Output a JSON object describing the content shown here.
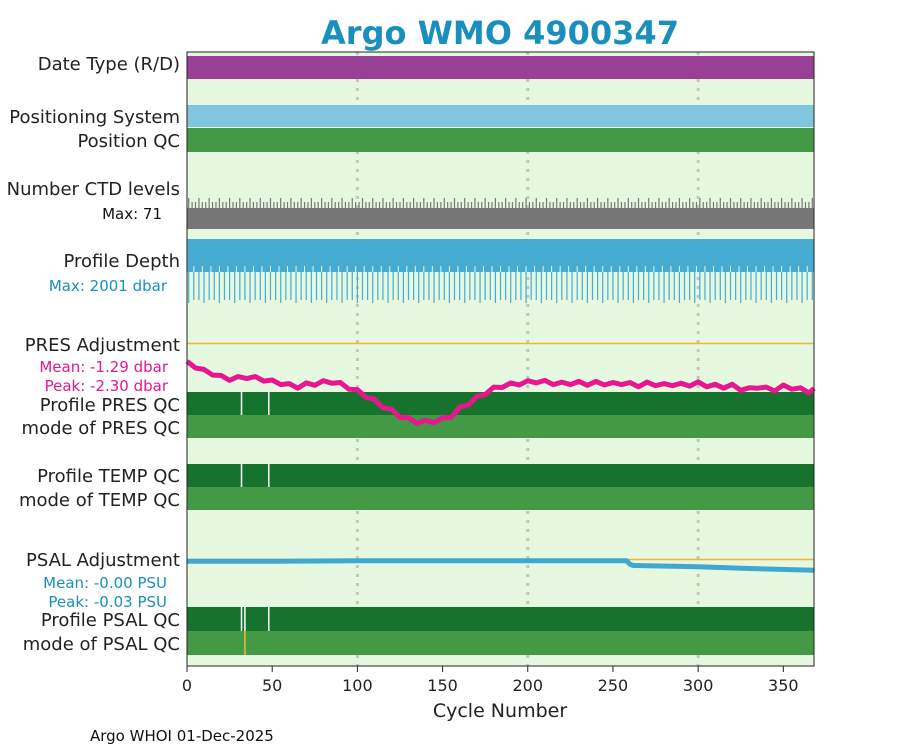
{
  "chart_data": {
    "type": "timeline",
    "title": "Argo WMO 4900347",
    "xlabel": "Cycle Number",
    "xlim": [
      0,
      368
    ],
    "xticks": [
      0,
      50,
      100,
      150,
      200,
      250,
      300,
      350
    ],
    "grid_x": [
      100,
      200,
      300
    ],
    "footer": "Argo WHOI 01-Dec-2025",
    "colors": {
      "title": "#1a8fbf",
      "panel_bg": "#e6f8e0",
      "date_type_D": "#9a3f96",
      "positioning": "#80c6df",
      "qc_good": "#449a44",
      "qc_dark": "#16732e",
      "ctd": "#777777",
      "depth": "#46acd2",
      "pres": "#e8168f",
      "psal": "#3ea8d2",
      "ref_line": "#f0b537",
      "qc_flag_white": "#ffffff",
      "qc_flag_orange": "#f0b537"
    },
    "rows": {
      "date_type": {
        "label": "Date Type (R/D)",
        "value": "D"
      },
      "positioning": {
        "label": "Positioning System"
      },
      "position_qc": {
        "label": "Position QC",
        "value": 1
      },
      "ctd_levels": {
        "label": "Number CTD levels",
        "max_text": "Max: 71",
        "max": 71
      },
      "profile_depth": {
        "label": "Profile Depth",
        "max_text": "Max: 2001 dbar",
        "max": 2001
      },
      "pres_adj": {
        "label": "PRES Adjustment",
        "mean_text": "Mean: -1.29 dbar",
        "peak_text": "Peak: -2.30 dbar",
        "range": [
          -2.45,
          0
        ],
        "points": [
          [
            0,
            -0.55
          ],
          [
            5,
            -0.65
          ],
          [
            10,
            -0.78
          ],
          [
            15,
            -0.85
          ],
          [
            20,
            -0.95
          ],
          [
            25,
            -1.0
          ],
          [
            30,
            -0.98
          ],
          [
            35,
            -0.95
          ],
          [
            40,
            -0.98
          ],
          [
            45,
            -1.02
          ],
          [
            50,
            -1.08
          ],
          [
            55,
            -1.12
          ],
          [
            60,
            -1.18
          ],
          [
            65,
            -1.22
          ],
          [
            70,
            -1.16
          ],
          [
            75,
            -1.14
          ],
          [
            80,
            -1.1
          ],
          [
            85,
            -1.08
          ],
          [
            90,
            -1.15
          ],
          [
            95,
            -1.25
          ],
          [
            100,
            -1.35
          ],
          [
            105,
            -1.48
          ],
          [
            110,
            -1.62
          ],
          [
            115,
            -1.78
          ],
          [
            120,
            -1.9
          ],
          [
            125,
            -2.05
          ],
          [
            130,
            -2.15
          ],
          [
            135,
            -2.22
          ],
          [
            140,
            -2.22
          ],
          [
            145,
            -2.2
          ],
          [
            150,
            -2.15
          ],
          [
            155,
            -2.05
          ],
          [
            160,
            -1.85
          ],
          [
            165,
            -1.7
          ],
          [
            170,
            -1.55
          ],
          [
            175,
            -1.4
          ],
          [
            180,
            -1.28
          ],
          [
            185,
            -1.2
          ],
          [
            190,
            -1.16
          ],
          [
            195,
            -1.13
          ],
          [
            200,
            -1.1
          ],
          [
            205,
            -1.07
          ],
          [
            210,
            -1.09
          ],
          [
            215,
            -1.12
          ],
          [
            220,
            -1.14
          ],
          [
            225,
            -1.12
          ],
          [
            230,
            -1.12
          ],
          [
            235,
            -1.14
          ],
          [
            240,
            -1.12
          ],
          [
            245,
            -1.13
          ],
          [
            250,
            -1.15
          ],
          [
            255,
            -1.12
          ],
          [
            260,
            -1.15
          ],
          [
            265,
            -1.18
          ],
          [
            270,
            -1.14
          ],
          [
            275,
            -1.15
          ],
          [
            280,
            -1.18
          ],
          [
            285,
            -1.15
          ],
          [
            290,
            -1.17
          ],
          [
            295,
            -1.16
          ],
          [
            300,
            -1.13
          ],
          [
            305,
            -1.18
          ],
          [
            310,
            -1.2
          ],
          [
            315,
            -1.22
          ],
          [
            320,
            -1.2
          ],
          [
            325,
            -1.28
          ],
          [
            330,
            -1.3
          ],
          [
            335,
            -1.22
          ],
          [
            340,
            -1.28
          ],
          [
            345,
            -1.3
          ],
          [
            350,
            -1.22
          ],
          [
            355,
            -1.25
          ],
          [
            360,
            -1.3
          ],
          [
            365,
            -1.35
          ],
          [
            368,
            -1.32
          ]
        ]
      },
      "profile_pres_qc": {
        "label": "Profile PRES QC",
        "white_ticks": [
          32,
          48
        ]
      },
      "mode_pres_qc": {
        "label": "mode of PRES QC"
      },
      "profile_temp_qc": {
        "label": "Profile TEMP QC",
        "white_ticks": [
          32,
          48
        ]
      },
      "mode_temp_qc": {
        "label": "mode of TEMP QC"
      },
      "psal_adj": {
        "label": "PSAL Adjustment",
        "mean_text": "Mean: -0.00 PSU",
        "peak_text": "Peak: -0.03 PSU",
        "range": [
          -0.03,
          0.002
        ],
        "points": [
          [
            0,
            -0.0003
          ],
          [
            50,
            -0.0003
          ],
          [
            100,
            -0.0002
          ],
          [
            150,
            -0.0002
          ],
          [
            200,
            -0.0002
          ],
          [
            258,
            -0.0002
          ],
          [
            260,
            -0.0008
          ],
          [
            262,
            -0.001
          ],
          [
            300,
            -0.0012
          ],
          [
            330,
            -0.0015
          ],
          [
            368,
            -0.0018
          ]
        ]
      },
      "profile_psal_qc": {
        "label": "Profile PSAL QC",
        "white_ticks": [
          32,
          34,
          48
        ]
      },
      "mode_psal_qc": {
        "label": "mode of PSAL QC",
        "orange_ticks": [
          34
        ]
      }
    }
  }
}
